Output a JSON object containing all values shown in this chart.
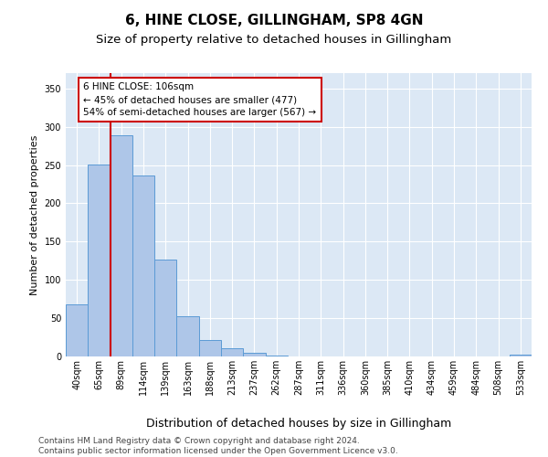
{
  "title": "6, HINE CLOSE, GILLINGHAM, SP8 4GN",
  "subtitle": "Size of property relative to detached houses in Gillingham",
  "xlabel": "Distribution of detached houses by size in Gillingham",
  "ylabel": "Number of detached properties",
  "categories": [
    "40sqm",
    "65sqm",
    "89sqm",
    "114sqm",
    "139sqm",
    "163sqm",
    "188sqm",
    "213sqm",
    "237sqm",
    "262sqm",
    "287sqm",
    "311sqm",
    "336sqm",
    "360sqm",
    "385sqm",
    "410sqm",
    "434sqm",
    "459sqm",
    "484sqm",
    "508sqm",
    "533sqm"
  ],
  "values": [
    68,
    251,
    289,
    236,
    127,
    53,
    22,
    11,
    5,
    1,
    0,
    0,
    0,
    0,
    0,
    0,
    0,
    0,
    0,
    0,
    2
  ],
  "bar_color": "#aec6e8",
  "bar_edge_color": "#5b9bd5",
  "vline_x_index": 2,
  "vline_color": "#cc0000",
  "annotation_text": "6 HINE CLOSE: 106sqm\n← 45% of detached houses are smaller (477)\n54% of semi-detached houses are larger (567) →",
  "annotation_box_color": "#ffffff",
  "annotation_box_edge": "#cc0000",
  "ylim": [
    0,
    370
  ],
  "yticks": [
    0,
    50,
    100,
    150,
    200,
    250,
    300,
    350
  ],
  "background_color": "#dce8f5",
  "footer": "Contains HM Land Registry data © Crown copyright and database right 2024.\nContains public sector information licensed under the Open Government Licence v3.0.",
  "title_fontsize": 11,
  "subtitle_fontsize": 9.5,
  "xlabel_fontsize": 9,
  "ylabel_fontsize": 8,
  "footer_fontsize": 6.5,
  "tick_fontsize": 7
}
